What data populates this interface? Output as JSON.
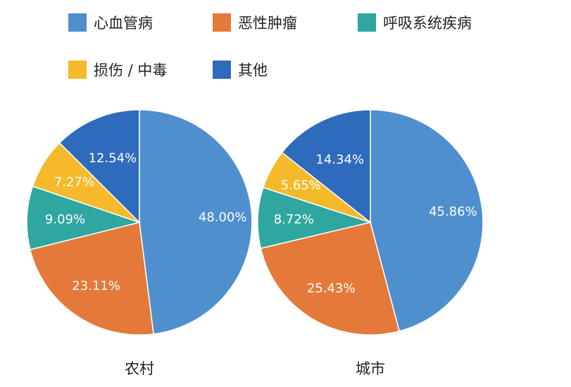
{
  "chart_data": [
    {
      "type": "pie",
      "title": "农村",
      "slices": [
        {
          "label": "心血管病",
          "value": 48.0,
          "text": "48.00%",
          "color": "#4f8fce"
        },
        {
          "label": "恶性肿瘤",
          "value": 23.11,
          "text": "23.11%",
          "color": "#e4793a"
        },
        {
          "label": "呼吸系统疾病",
          "value": 9.09,
          "text": "9.09%",
          "color": "#2fa6a0"
        },
        {
          "label": "损伤 / 中毒",
          "value": 7.27,
          "text": "7.27%",
          "color": "#f5b92c"
        },
        {
          "label": "其他",
          "value": 12.54,
          "text": "12.54%",
          "color": "#2f6bbd"
        }
      ]
    },
    {
      "type": "pie",
      "title": "城市",
      "slices": [
        {
          "label": "心血管病",
          "value": 45.86,
          "text": "45.86%",
          "color": "#4f8fce"
        },
        {
          "label": "恶性肿瘤",
          "value": 25.43,
          "text": "25.43%",
          "color": "#e4793a"
        },
        {
          "label": "呼吸系统疾病",
          "value": 8.72,
          "text": "8.72%",
          "color": "#2fa6a0"
        },
        {
          "label": "损伤 / 中毒",
          "value": 5.65,
          "text": "5.65%",
          "color": "#f5b92c"
        },
        {
          "label": "其他",
          "value": 14.34,
          "text": "14.34%",
          "color": "#2f6bbd"
        }
      ]
    }
  ],
  "legend": {
    "items": [
      {
        "label": "心血管病",
        "color": "#4f8fce"
      },
      {
        "label": "恶性肿瘤",
        "color": "#e4793a"
      },
      {
        "label": "呼吸系统疾病",
        "color": "#2fa6a0"
      },
      {
        "label": "损伤 / 中毒",
        "color": "#f5b92c"
      },
      {
        "label": "其他",
        "color": "#2f6bbd"
      }
    ]
  }
}
